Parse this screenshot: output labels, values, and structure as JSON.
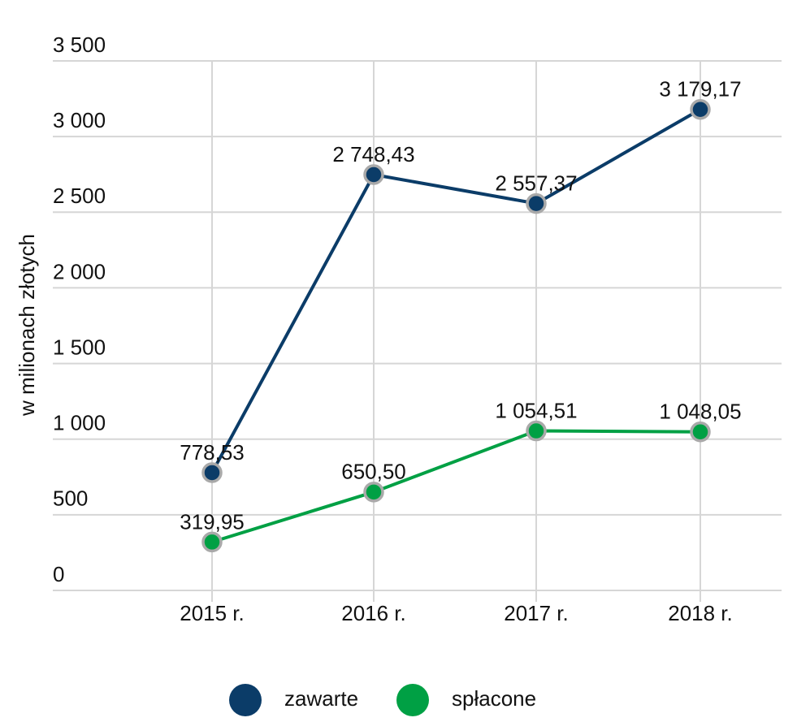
{
  "chart_data": {
    "type": "line",
    "y_label": "w milionach złotych",
    "categories": [
      "2015 r.",
      "2016 r.",
      "2017 r.",
      "2018 r."
    ],
    "series": [
      {
        "name": "zawarte",
        "color": "#0b3c68",
        "values": [
          778.53,
          2748.43,
          2557.37,
          3179.17
        ],
        "value_labels": [
          "778,53",
          "2 748,43",
          "2 557,37",
          "3 179,17"
        ]
      },
      {
        "name": "spłacone",
        "color": "#00a044",
        "values": [
          319.95,
          650.5,
          1054.51,
          1048.05
        ],
        "value_labels": [
          "319,95",
          "650,50",
          "1 054,51",
          "1 048,05"
        ]
      }
    ],
    "ylim": [
      0,
      3500
    ],
    "yticks": [
      0,
      500,
      {
        "value": 1000,
        "label": "1 000"
      },
      {
        "value": 1500,
        "label": "1 500"
      },
      {
        "value": 2000,
        "label": "2 000"
      },
      {
        "value": 2500,
        "label": "2 500"
      },
      {
        "value": 3000,
        "label": "3 000"
      },
      {
        "value": 3500,
        "label": "3 500"
      }
    ],
    "grid": true,
    "legend": "bottom"
  }
}
